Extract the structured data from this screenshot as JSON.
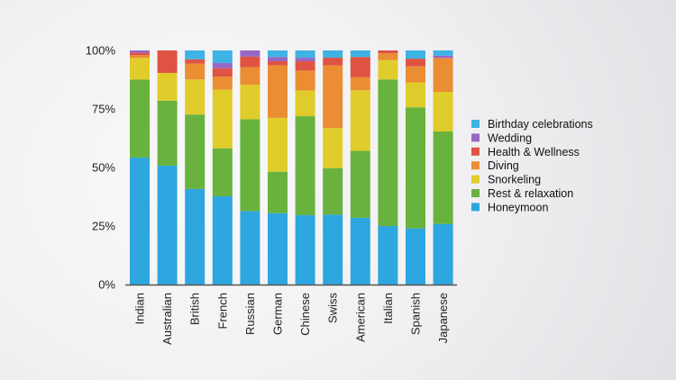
{
  "chart_data": {
    "type": "bar",
    "stacked": true,
    "normalized": true,
    "title": "",
    "xlabel": "",
    "ylabel": "",
    "ylim": [
      0,
      100
    ],
    "y_ticks": [
      "0%",
      "25%",
      "50%",
      "75%",
      "100%"
    ],
    "y_tick_values": [
      0,
      25,
      50,
      75,
      100
    ],
    "grid": false,
    "legend_position": "right",
    "categories": [
      "Indian",
      "Australian",
      "British",
      "French",
      "Russian",
      "German",
      "Chinese",
      "Swiss",
      "American",
      "Italian",
      "Spanish",
      "Japanese"
    ],
    "series": [
      {
        "name": "Honeymoon",
        "color": "#2ea6df",
        "values": [
          54.2,
          50.8,
          40.8,
          37.7,
          31.4,
          30.5,
          29.6,
          29.9,
          28.5,
          25.0,
          24.0,
          25.9
        ]
      },
      {
        "name": "Rest & relaxation",
        "color": "#6ab23e",
        "values": [
          33.3,
          27.7,
          31.8,
          20.5,
          39.2,
          17.7,
          42.3,
          19.9,
          28.6,
          62.6,
          51.7,
          39.5
        ]
      },
      {
        "name": "Snorkeling",
        "color": "#e0cc2b",
        "values": [
          9.3,
          11.9,
          15.0,
          25.1,
          14.7,
          23.0,
          11.0,
          17.1,
          25.9,
          8.3,
          10.6,
          16.9
        ]
      },
      {
        "name": "Diving",
        "color": "#eb8d33",
        "values": [
          1.2,
          0,
          6.8,
          5.5,
          7.6,
          22.4,
          8.5,
          26.8,
          5.6,
          2.9,
          6.9,
          14.5
        ]
      },
      {
        "name": "Health & Wellness",
        "color": "#df5343",
        "values": [
          1.0,
          9.6,
          1.8,
          3.6,
          4.5,
          1.8,
          4.0,
          3.3,
          8.6,
          1.2,
          3.3,
          0
        ]
      },
      {
        "name": "Wedding",
        "color": "#9668c4",
        "values": [
          1.0,
          0,
          0,
          2.2,
          2.6,
          1.8,
          1.5,
          0,
          0,
          0,
          0,
          1.0
        ]
      },
      {
        "name": "Birthday celebrations",
        "color": "#3fb3e3",
        "values": [
          0,
          0,
          3.8,
          5.4,
          0,
          2.8,
          3.1,
          3.1,
          2.8,
          0,
          3.5,
          2.2
        ]
      }
    ],
    "legend_order": [
      "Birthday celebrations",
      "Wedding",
      "Health & Wellness",
      "Diving",
      "Snorkeling",
      "Rest & relaxation",
      "Honeymoon"
    ]
  }
}
